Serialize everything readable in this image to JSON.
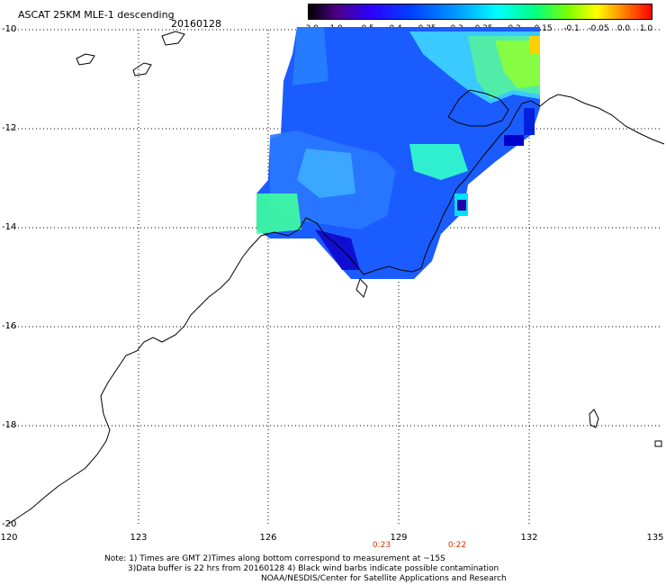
{
  "header": {
    "title": "ASCAT 25KM MLE-1 descending",
    "date": "20160128"
  },
  "colorbar": {
    "labels": [
      "-3.0",
      "-1.0",
      "-0.5",
      "-0.4",
      "-0.35",
      "-0.3",
      "-0.25",
      "-0.2",
      "-0.15",
      "-0.1",
      "-0.05",
      "0.0",
      "1.0"
    ]
  },
  "axes": {
    "lat_labels": [
      "-10",
      "-12",
      "-14",
      "-16",
      "-18",
      "-20"
    ],
    "lon_labels": [
      "120",
      "123",
      "126",
      "129",
      "132",
      "135"
    ]
  },
  "time_labels": [
    "0:23",
    "0:22"
  ],
  "notes": {
    "line1": "Note: 1) Times are GMT 2)Times along bottom correspond to measurement at ~15S",
    "line2": "3)Data buffer is 22 hrs from 20160128 4) Black wind barbs indicate possible contamination",
    "line3": "NOAA/NESDIS/Center for Satellite Applications and Research"
  }
}
